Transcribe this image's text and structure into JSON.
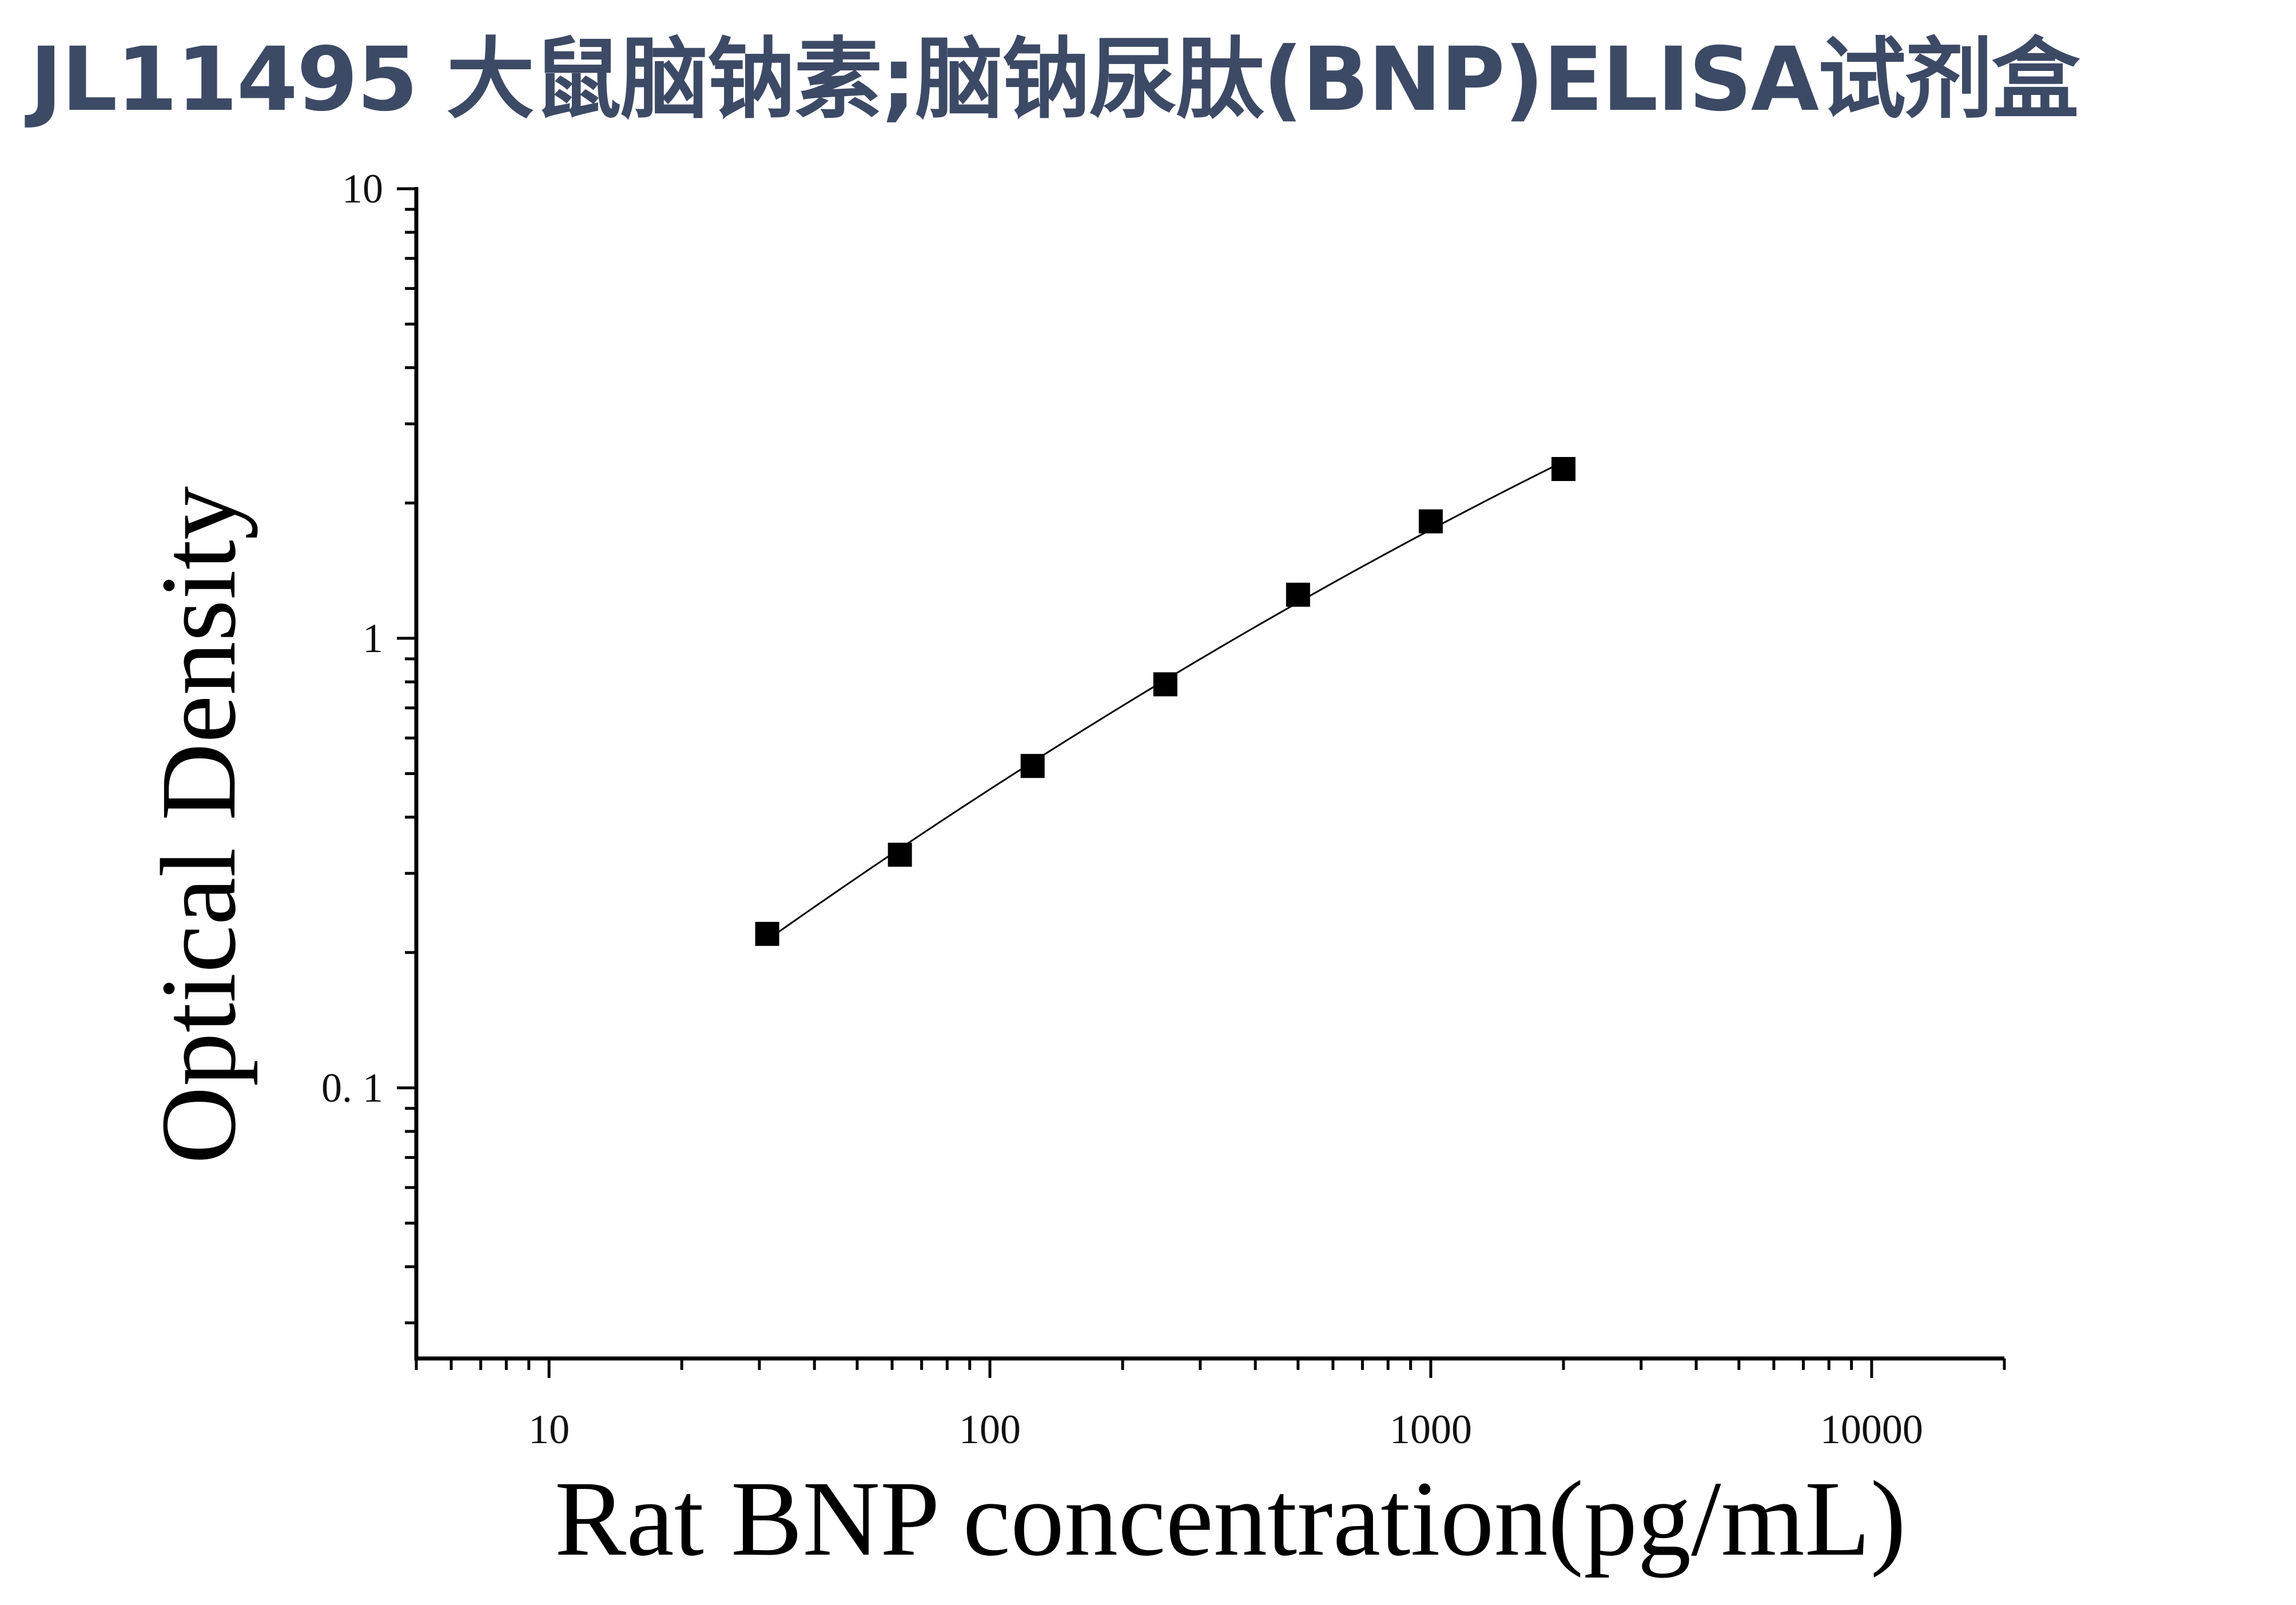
{
  "title": "JL11495 大鼠脑钠素;脑钠尿肽(BNP)ELISA试剂盒",
  "colors": {
    "title": "#3d4a66",
    "axis": "#000000",
    "marker": "#000000",
    "curve": "#000000",
    "background": "#ffffff"
  },
  "chart_data": {
    "type": "scatter",
    "xlabel": "Rat BNP concentration(pg/mL)",
    "ylabel": "Optical Density",
    "xscale": "log",
    "yscale": "log",
    "xlim": [
      5,
      20000
    ],
    "ylim": [
      0.025,
      10
    ],
    "xticks": [
      10,
      100,
      1000,
      10000
    ],
    "xtick_labels": [
      "10",
      "100",
      "1000",
      "10000"
    ],
    "yticks": [
      0.1,
      1,
      10
    ],
    "ytick_labels": [
      "0. 1",
      "1",
      "10"
    ],
    "grid": false,
    "legend": "none",
    "marker": "square",
    "fit_line": true,
    "series": [
      {
        "x": [
          31.25,
          62.5,
          125,
          250,
          500,
          1000,
          2000
        ],
        "y": [
          0.22,
          0.33,
          0.52,
          0.79,
          1.25,
          1.82,
          2.38
        ]
      }
    ]
  }
}
